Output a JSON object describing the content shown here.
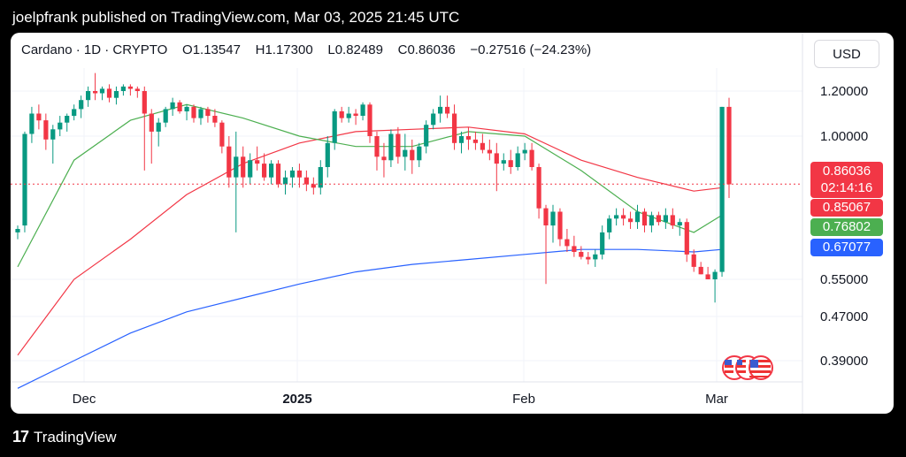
{
  "header": {
    "publisher": "joelpfrank published on TradingView.com, Mar 03, 2025 21:45 UTC"
  },
  "footer": {
    "brand": "TradingView"
  },
  "legend": {
    "symbol": "Cardano · 1D · CRYPTO",
    "open": "O1.13547",
    "high": "H1.17300",
    "low": "L0.82489",
    "close": "C0.86036",
    "change": "−0.27516 (−24.23%)"
  },
  "currency": "USD",
  "badges": {
    "price": "0.86036",
    "countdown": "02:14:16",
    "ma_red": "0.85067",
    "ma_green": "0.76802",
    "ma_blue": "0.67077"
  },
  "colors": {
    "up": "#089981",
    "down": "#f23645",
    "ma_green": "#4caf50",
    "ma_red": "#f23645",
    "ma_blue": "#2962ff",
    "grid": "#f0f3fa"
  },
  "chart_data": {
    "type": "candlestick",
    "y_ticks": [
      "1.20000",
      "1.00000",
      "0.55000",
      "0.47000",
      "0.39000"
    ],
    "y_tick_values": [
      1.2,
      1.0,
      0.55,
      0.47,
      0.39
    ],
    "x_ticks": [
      {
        "label": "Dec",
        "date": "2024-12-01"
      },
      {
        "label": "2025",
        "date": "2025-01-01"
      },
      {
        "label": "Feb",
        "date": "2025-02-01"
      },
      {
        "label": "Mar",
        "date": "2025-03-01"
      }
    ],
    "last_price": 0.86036,
    "candles": [
      [
        0.72,
        0.74,
        0.7,
        0.73
      ],
      [
        0.74,
        1.02,
        0.72,
        1.01
      ],
      [
        1.01,
        1.13,
        0.98,
        1.1
      ],
      [
        1.1,
        1.14,
        1.03,
        1.07
      ],
      [
        1.07,
        1.1,
        0.96,
        0.99
      ],
      [
        0.99,
        1.05,
        0.92,
        1.03
      ],
      [
        1.03,
        1.09,
        1.0,
        1.06
      ],
      [
        1.06,
        1.1,
        1.02,
        1.09
      ],
      [
        1.09,
        1.14,
        1.07,
        1.12
      ],
      [
        1.12,
        1.18,
        1.08,
        1.16
      ],
      [
        1.16,
        1.22,
        1.13,
        1.2
      ],
      [
        1.2,
        1.28,
        1.16,
        1.19
      ],
      [
        1.19,
        1.22,
        1.16,
        1.21
      ],
      [
        1.21,
        1.23,
        1.15,
        1.17
      ],
      [
        1.17,
        1.22,
        1.14,
        1.2
      ],
      [
        1.2,
        1.23,
        1.18,
        1.22
      ],
      [
        1.22,
        1.23,
        1.18,
        1.21
      ],
      [
        1.21,
        1.22,
        1.17,
        1.2
      ],
      [
        1.2,
        1.22,
        0.9,
        1.1
      ],
      [
        1.1,
        1.12,
        0.92,
        1.02
      ],
      [
        1.02,
        1.08,
        0.97,
        1.06
      ],
      [
        1.06,
        1.13,
        1.04,
        1.12
      ],
      [
        1.12,
        1.17,
        1.09,
        1.15
      ],
      [
        1.15,
        1.16,
        1.1,
        1.11
      ],
      [
        1.11,
        1.14,
        1.07,
        1.13
      ],
      [
        1.13,
        1.14,
        1.06,
        1.08
      ],
      [
        1.08,
        1.13,
        1.05,
        1.12
      ],
      [
        1.12,
        1.13,
        1.06,
        1.09
      ],
      [
        1.09,
        1.12,
        1.04,
        1.06
      ],
      [
        1.06,
        1.07,
        0.95,
        0.97
      ],
      [
        0.97,
        1.0,
        0.85,
        0.88
      ],
      [
        0.88,
        1.02,
        0.72,
        0.94
      ],
      [
        0.94,
        0.97,
        0.85,
        0.88
      ],
      [
        0.88,
        0.95,
        0.86,
        0.93
      ],
      [
        0.93,
        0.97,
        0.9,
        0.92
      ],
      [
        0.92,
        0.95,
        0.87,
        0.88
      ],
      [
        0.88,
        0.93,
        0.86,
        0.92
      ],
      [
        0.92,
        0.93,
        0.85,
        0.86
      ],
      [
        0.86,
        0.9,
        0.83,
        0.88
      ],
      [
        0.88,
        0.91,
        0.85,
        0.9
      ],
      [
        0.9,
        0.92,
        0.85,
        0.88
      ],
      [
        0.88,
        0.9,
        0.84,
        0.86
      ],
      [
        0.86,
        0.88,
        0.83,
        0.85
      ],
      [
        0.85,
        0.93,
        0.83,
        0.91
      ],
      [
        0.91,
        1.0,
        0.88,
        0.98
      ],
      [
        0.98,
        1.12,
        0.96,
        1.11
      ],
      [
        1.11,
        1.13,
        1.06,
        1.08
      ],
      [
        1.08,
        1.13,
        1.06,
        1.1
      ],
      [
        1.1,
        1.12,
        1.05,
        1.09
      ],
      [
        1.09,
        1.15,
        1.07,
        1.14
      ],
      [
        1.14,
        1.15,
        0.98,
        1.0
      ],
      [
        1.0,
        1.02,
        0.9,
        0.94
      ],
      [
        0.94,
        0.98,
        0.88,
        0.93
      ],
      [
        0.93,
        1.03,
        0.91,
        1.01
      ],
      [
        1.01,
        1.04,
        0.92,
        0.94
      ],
      [
        0.94,
        1.01,
        0.9,
        0.96
      ],
      [
        0.96,
        0.99,
        0.89,
        0.93
      ],
      [
        0.93,
        0.98,
        0.91,
        0.97
      ],
      [
        0.97,
        1.07,
        0.95,
        1.05
      ],
      [
        1.05,
        1.12,
        1.03,
        1.1
      ],
      [
        1.1,
        1.18,
        1.06,
        1.13
      ],
      [
        1.13,
        1.18,
        1.08,
        1.1
      ],
      [
        1.1,
        1.14,
        0.96,
        0.98
      ],
      [
        0.98,
        1.02,
        0.95,
        1.0
      ],
      [
        1.0,
        1.04,
        0.96,
        0.99
      ],
      [
        0.99,
        1.02,
        0.96,
        0.98
      ],
      [
        0.98,
        1.01,
        0.95,
        0.96
      ],
      [
        0.96,
        0.99,
        0.93,
        0.95
      ],
      [
        0.95,
        0.98,
        0.84,
        0.92
      ],
      [
        0.92,
        0.95,
        0.9,
        0.93
      ],
      [
        0.93,
        0.96,
        0.89,
        0.91
      ],
      [
        0.91,
        0.97,
        0.9,
        0.95
      ],
      [
        0.95,
        0.98,
        0.93,
        0.96
      ],
      [
        0.96,
        0.98,
        0.9,
        0.91
      ],
      [
        0.91,
        0.92,
        0.76,
        0.79
      ],
      [
        0.79,
        0.8,
        0.54,
        0.74
      ],
      [
        0.74,
        0.8,
        0.69,
        0.78
      ],
      [
        0.78,
        0.79,
        0.68,
        0.7
      ],
      [
        0.7,
        0.73,
        0.66,
        0.68
      ],
      [
        0.68,
        0.71,
        0.64,
        0.66
      ],
      [
        0.66,
        0.68,
        0.63,
        0.64
      ],
      [
        0.64,
        0.66,
        0.61,
        0.63
      ],
      [
        0.63,
        0.67,
        0.6,
        0.65
      ],
      [
        0.65,
        0.74,
        0.63,
        0.72
      ],
      [
        0.72,
        0.77,
        0.7,
        0.76
      ],
      [
        0.76,
        0.79,
        0.74,
        0.77
      ],
      [
        0.77,
        0.79,
        0.74,
        0.76
      ],
      [
        0.76,
        0.78,
        0.73,
        0.75
      ],
      [
        0.75,
        0.8,
        0.73,
        0.78
      ],
      [
        0.78,
        0.79,
        0.72,
        0.74
      ],
      [
        0.74,
        0.78,
        0.72,
        0.77
      ],
      [
        0.77,
        0.78,
        0.74,
        0.75
      ],
      [
        0.75,
        0.79,
        0.73,
        0.77
      ],
      [
        0.77,
        0.79,
        0.73,
        0.74
      ],
      [
        0.74,
        0.76,
        0.71,
        0.75
      ],
      [
        0.75,
        0.76,
        0.62,
        0.65
      ],
      [
        0.65,
        0.67,
        0.58,
        0.6
      ],
      [
        0.6,
        0.62,
        0.57,
        0.57
      ],
      [
        0.57,
        0.6,
        0.55,
        0.55
      ],
      [
        0.55,
        0.59,
        0.5,
        0.58
      ],
      [
        0.58,
        1.13,
        0.56,
        1.13
      ],
      [
        1.13,
        1.17,
        0.82,
        0.86
      ]
    ],
    "ma_green": [
      [
        0,
        0.6
      ],
      [
        8,
        0.93
      ],
      [
        16,
        1.07
      ],
      [
        24,
        1.14
      ],
      [
        32,
        1.08
      ],
      [
        40,
        1.0
      ],
      [
        48,
        0.97
      ],
      [
        56,
        0.97
      ],
      [
        64,
        1.02
      ],
      [
        72,
        1.0
      ],
      [
        80,
        0.9
      ],
      [
        88,
        0.78
      ],
      [
        96,
        0.72
      ],
      [
        100,
        0.77
      ]
    ],
    "ma_red": [
      [
        0,
        0.4
      ],
      [
        8,
        0.55
      ],
      [
        16,
        0.7
      ],
      [
        24,
        0.83
      ],
      [
        32,
        0.92
      ],
      [
        40,
        0.98
      ],
      [
        48,
        1.02
      ],
      [
        56,
        1.03
      ],
      [
        64,
        1.04
      ],
      [
        72,
        1.01
      ],
      [
        80,
        0.93
      ],
      [
        88,
        0.88
      ],
      [
        96,
        0.84
      ],
      [
        100,
        0.85
      ]
    ],
    "ma_blue": [
      [
        0,
        0.34
      ],
      [
        8,
        0.39
      ],
      [
        16,
        0.44
      ],
      [
        24,
        0.48
      ],
      [
        32,
        0.51
      ],
      [
        40,
        0.54
      ],
      [
        48,
        0.58
      ],
      [
        56,
        0.61
      ],
      [
        64,
        0.63
      ],
      [
        72,
        0.65
      ],
      [
        80,
        0.67
      ],
      [
        88,
        0.67
      ],
      [
        96,
        0.66
      ],
      [
        100,
        0.67
      ]
    ]
  }
}
